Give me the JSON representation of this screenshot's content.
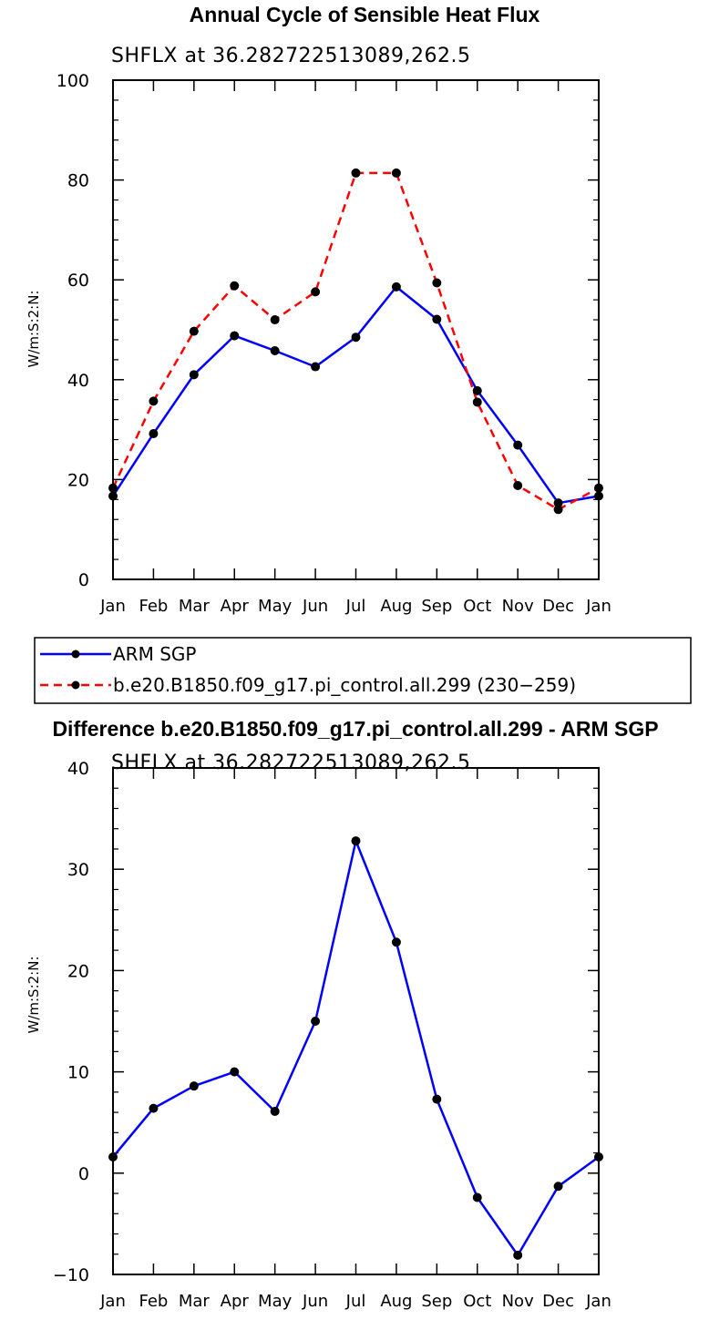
{
  "chart_data": [
    {
      "type": "line",
      "title": "Annual Cycle of Sensible Heat Flux",
      "subtitle": "SHFLX at 36.282722513089,262.5",
      "xlabel": "",
      "ylabel": "W/m:S:2:N:",
      "categories": [
        "Jan",
        "Feb",
        "Mar",
        "Apr",
        "May",
        "Jun",
        "Jul",
        "Aug",
        "Sep",
        "Oct",
        "Nov",
        "Dec",
        "Jan"
      ],
      "ylim": [
        0,
        100
      ],
      "yticks": [
        0,
        20,
        40,
        60,
        80,
        100
      ],
      "grid": false,
      "series": [
        {
          "name": "ARM SGP",
          "color": "#0000ff",
          "style": "solid",
          "values": [
            16.7,
            29.2,
            41.0,
            48.8,
            45.8,
            42.6,
            48.5,
            58.6,
            52.1,
            37.8,
            26.9,
            15.3,
            16.7
          ]
        },
        {
          "name": "b.e20.B1850.f09_g17.pi_control.all.299 (230-259)",
          "color": "#ff0000",
          "style": "dashed",
          "values": [
            18.3,
            35.7,
            49.7,
            58.8,
            52.0,
            57.6,
            81.4,
            81.4,
            59.4,
            35.5,
            18.8,
            14.0,
            18.3
          ]
        }
      ],
      "legend": {
        "position": "below",
        "entries": [
          "ARM SGP",
          "b.e20.B1850.f09_g17.pi_control.all.299 (230−259)"
        ]
      }
    },
    {
      "type": "line",
      "title": "Difference b.e20.B1850.f09_g17.pi_control.all.299 - ARM SGP",
      "subtitle": "SHFLX at 36.282722513089,262.5",
      "xlabel": "",
      "ylabel": "W/m:S:2:N:",
      "categories": [
        "Jan",
        "Feb",
        "Mar",
        "Apr",
        "May",
        "Jun",
        "Jul",
        "Aug",
        "Sep",
        "Oct",
        "Nov",
        "Dec",
        "Jan"
      ],
      "ylim": [
        -10,
        40
      ],
      "yticks": [
        -10,
        0,
        10,
        20,
        30,
        40
      ],
      "grid": false,
      "series": [
        {
          "name": "Difference",
          "color": "#0000ff",
          "style": "solid",
          "values": [
            1.6,
            6.4,
            8.6,
            10.0,
            6.1,
            15.0,
            32.8,
            22.8,
            7.3,
            -2.4,
            -8.1,
            -1.3,
            1.6
          ]
        }
      ]
    }
  ]
}
